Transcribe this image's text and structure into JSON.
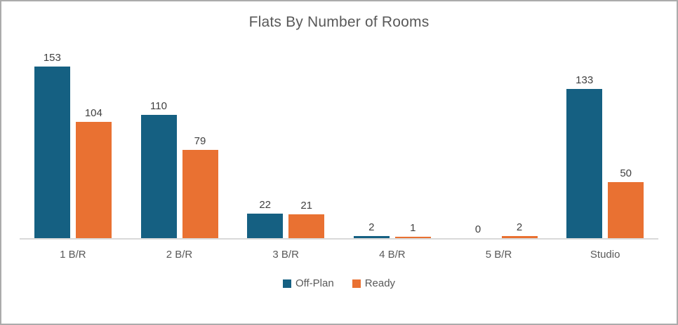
{
  "window": {
    "background": "#ffffff",
    "border_color": "#ababab"
  },
  "colors": {
    "title_text": "#595959",
    "data_label_text": "#404040",
    "axis_label_text": "#595959",
    "axis_line": "#d9d9d9",
    "legend_text": "#595959"
  },
  "chart_data": {
    "type": "bar",
    "title": "Flats By Number of Rooms",
    "categories": [
      "1 B/R",
      "2 B/R",
      "3 B/R",
      "4 B/R",
      "5 B/R",
      "Studio"
    ],
    "series": [
      {
        "name": "Off-Plan",
        "color": "#156082",
        "values": [
          153,
          110,
          22,
          2,
          0,
          133
        ]
      },
      {
        "name": "Ready",
        "color": "#E97132",
        "values": [
          104,
          79,
          21,
          1,
          2,
          50
        ]
      }
    ],
    "data_labels": true,
    "grid": false,
    "y_axis_visible": false,
    "ylim": [
      0,
      160
    ],
    "legend_position": "bottom"
  }
}
